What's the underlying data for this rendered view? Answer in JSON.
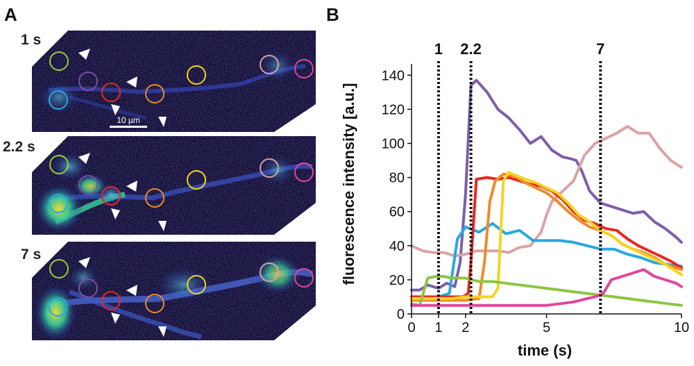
{
  "panel_a": {
    "letter": "A",
    "frames": [
      {
        "label": "1 s",
        "intensity": "low"
      },
      {
        "label": "2.2 s",
        "intensity": "medium"
      },
      {
        "label": "7 s",
        "intensity": "high"
      }
    ],
    "scale_bar": "10 µm",
    "roi_colors": {
      "yellow_green": "#9acd32",
      "purple": "#7d4ea6",
      "blue": "#29a8e0",
      "red": "#e8281e",
      "orange": "#f08a2a",
      "yellow": "#f2d51f",
      "light_pink": "#d9a3a6",
      "magenta": "#e2459c"
    }
  },
  "panel_b": {
    "letter": "B"
  },
  "chart_data": {
    "type": "line",
    "xlabel": "time (s)",
    "ylabel": "fluorescence intensity [a.u.]",
    "xlim": [
      0,
      10
    ],
    "ylim": [
      0,
      145
    ],
    "x_ticks": [
      0,
      1,
      2,
      5,
      10
    ],
    "y_ticks": [
      0,
      20,
      40,
      60,
      80,
      100,
      120,
      140
    ],
    "markers": [
      {
        "x": 1,
        "label": "1"
      },
      {
        "x": 2.2,
        "label": "2.2"
      },
      {
        "x": 7,
        "label": "7"
      }
    ],
    "series": [
      {
        "name": "purple",
        "color": "#7d5ea8",
        "x": [
          0,
          0.3,
          0.6,
          1.0,
          1.3,
          1.6,
          1.8,
          2.0,
          2.2,
          2.4,
          2.8,
          3.2,
          3.6,
          4.0,
          4.4,
          4.8,
          5.2,
          5.6,
          5.9,
          6.1,
          6.3,
          6.6,
          7.0,
          7.4,
          7.8,
          8.2,
          8.6,
          9.0,
          9.4,
          9.8,
          10.0
        ],
        "y": [
          14,
          14,
          17,
          15,
          18,
          16,
          30,
          70,
          134,
          137,
          130,
          120,
          115,
          108,
          100,
          104,
          96,
          92,
          91,
          90,
          84,
          72,
          65,
          63,
          61,
          59,
          60,
          54,
          50,
          45,
          42
        ]
      },
      {
        "name": "light pink",
        "color": "#d9a3a6",
        "x": [
          0,
          0.4,
          0.8,
          1.2,
          1.6,
          2.0,
          2.4,
          2.8,
          3.2,
          3.6,
          4.0,
          4.4,
          4.8,
          5.0,
          5.2,
          5.6,
          6.0,
          6.4,
          6.8,
          7.2,
          7.6,
          8.0,
          8.4,
          8.8,
          9.2,
          9.6,
          10.0
        ],
        "y": [
          40,
          37,
          36,
          36,
          34,
          35,
          37,
          37,
          37,
          36,
          39,
          40,
          48,
          58,
          66,
          72,
          78,
          93,
          100,
          103,
          106,
          110,
          106,
          106,
          97,
          90,
          86
        ]
      },
      {
        "name": "blue",
        "color": "#29a8e0",
        "x": [
          0,
          0.5,
          1.0,
          1.4,
          1.7,
          2.0,
          2.5,
          3.0,
          3.5,
          4.0,
          4.5,
          5.0,
          5.5,
          6.0,
          6.5,
          7.0,
          7.5,
          8.0,
          8.5,
          9.0,
          9.5,
          10.0
        ],
        "y": [
          9,
          9,
          10,
          12,
          44,
          51,
          48,
          53,
          47,
          49,
          43,
          43,
          43,
          42,
          40,
          38,
          38,
          35,
          33,
          30,
          29,
          28
        ]
      },
      {
        "name": "red",
        "color": "#e8281e",
        "x": [
          0,
          0.5,
          1.0,
          1.5,
          1.9,
          2.1,
          2.2,
          2.4,
          2.8,
          3.2,
          3.6,
          4.0,
          4.4,
          4.8,
          5.2,
          5.6,
          6.0,
          6.4,
          6.8,
          7.2,
          7.6,
          8.0,
          8.4,
          8.8,
          9.2,
          9.6,
          10.0
        ],
        "y": [
          10,
          10,
          10,
          10,
          10,
          12,
          30,
          79,
          80,
          79,
          80,
          78,
          76,
          75,
          72,
          67,
          60,
          55,
          53,
          50,
          49,
          44,
          40,
          37,
          34,
          31,
          27
        ]
      },
      {
        "name": "orange",
        "color": "#f08a2a",
        "x": [
          0,
          0.5,
          1.0,
          1.5,
          2.0,
          2.5,
          2.7,
          2.9,
          3.1,
          3.4,
          3.8,
          4.2,
          4.6,
          5.0,
          5.4,
          5.8,
          6.2,
          6.6,
          7.0,
          7.4,
          7.8,
          8.2,
          8.6,
          9.0,
          9.4,
          9.8,
          10.0
        ],
        "y": [
          8,
          8,
          8,
          8,
          8,
          9,
          30,
          66,
          78,
          82,
          81,
          77,
          74,
          71,
          66,
          60,
          55,
          51,
          49,
          46,
          41,
          38,
          36,
          33,
          29,
          27,
          26
        ]
      },
      {
        "name": "yellow",
        "color": "#f2d51f",
        "x": [
          0,
          0.5,
          1.0,
          1.5,
          2.0,
          2.5,
          3.0,
          3.2,
          3.4,
          3.6,
          3.9,
          4.2,
          4.6,
          5.0,
          5.4,
          5.8,
          6.2,
          6.6,
          7.0,
          7.4,
          7.8,
          8.2,
          8.6,
          9.0,
          9.4,
          9.8,
          10.0
        ],
        "y": [
          9,
          9,
          9,
          9,
          10,
          10,
          10,
          15,
          78,
          83,
          81,
          79,
          77,
          74,
          71,
          65,
          58,
          54,
          49,
          46,
          41,
          38,
          35,
          32,
          29,
          25,
          23
        ]
      },
      {
        "name": "yellow-green",
        "color": "#8cc63f",
        "x": [
          0,
          0.3,
          0.6,
          0.9,
          1.2,
          1.5,
          2.0,
          2.5,
          3.0,
          3.5,
          4.0,
          4.5,
          5.0,
          5.5,
          6.0,
          6.5,
          7.0,
          7.5,
          8.0,
          8.5,
          9.0,
          9.5,
          10.0
        ],
        "y": [
          6,
          5,
          21,
          22,
          22,
          21,
          21,
          19,
          19,
          18,
          17,
          16,
          15,
          14,
          13,
          12,
          11,
          10,
          9,
          8,
          7,
          6,
          5
        ]
      },
      {
        "name": "magenta",
        "color": "#e2459c",
        "x": [
          0,
          0.5,
          1.0,
          1.5,
          2.0,
          2.5,
          3.0,
          3.5,
          4.0,
          4.5,
          5.0,
          5.5,
          6.0,
          6.5,
          6.8,
          7.1,
          7.4,
          7.8,
          8.2,
          8.6,
          9.0,
          9.4,
          9.8,
          10.0
        ],
        "y": [
          5,
          5,
          5,
          5,
          5,
          5,
          5,
          5,
          5,
          5,
          5,
          6,
          7,
          9,
          10,
          12,
          20,
          22,
          24,
          26,
          22,
          20,
          18,
          16
        ]
      }
    ]
  }
}
